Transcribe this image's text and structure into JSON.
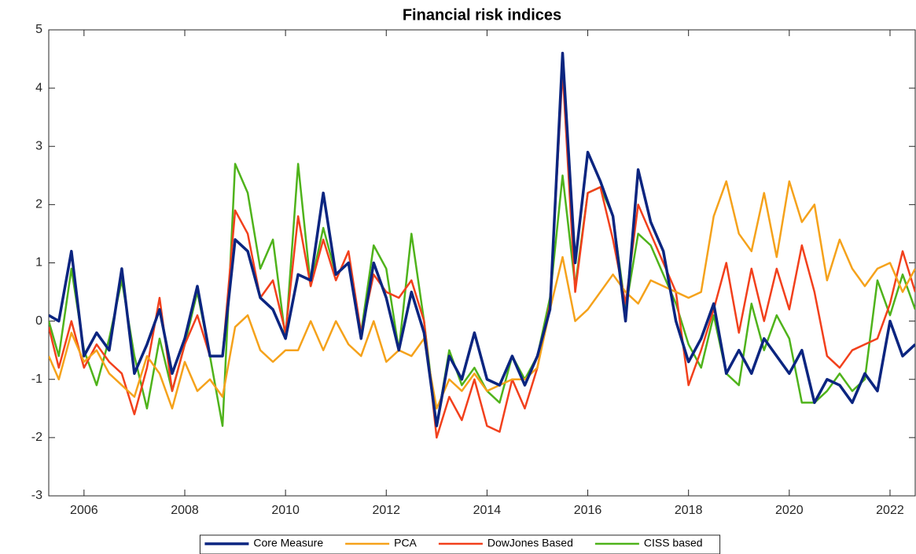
{
  "chart_data": {
    "type": "line",
    "title": "Financial risk indices",
    "x": [
      2005.3,
      2005.5,
      2005.75,
      2006,
      2006.25,
      2006.5,
      2006.75,
      2007,
      2007.25,
      2007.5,
      2007.75,
      2008,
      2008.25,
      2008.5,
      2008.75,
      2009,
      2009.25,
      2009.5,
      2009.75,
      2010,
      2010.25,
      2010.5,
      2010.75,
      2011,
      2011.25,
      2011.5,
      2011.75,
      2012,
      2012.25,
      2012.5,
      2012.75,
      2013,
      2013.25,
      2013.5,
      2013.75,
      2014,
      2014.25,
      2014.5,
      2014.75,
      2015,
      2015.25,
      2015.5,
      2015.75,
      2016,
      2016.25,
      2016.5,
      2016.75,
      2017,
      2017.25,
      2017.5,
      2017.75,
      2018,
      2018.25,
      2018.5,
      2018.75,
      2019,
      2019.25,
      2019.5,
      2019.75,
      2020,
      2020.25,
      2020.5,
      2020.75,
      2021,
      2021.25,
      2021.5,
      2021.75,
      2022,
      2022.25,
      2022.5
    ],
    "series": [
      {
        "name": "Core Measure",
        "color": "#0b2580",
        "values": [
          0.1,
          0.0,
          1.2,
          -0.6,
          -0.2,
          -0.5,
          0.9,
          -0.9,
          -0.4,
          0.2,
          -0.9,
          -0.3,
          0.6,
          -0.6,
          -0.6,
          1.4,
          1.2,
          0.4,
          0.2,
          -0.3,
          0.8,
          0.7,
          2.2,
          0.8,
          1.0,
          -0.3,
          1.0,
          0.4,
          -0.5,
          0.5,
          -0.2,
          -1.8,
          -0.6,
          -1.0,
          -0.2,
          -1.0,
          -1.1,
          -0.6,
          -1.1,
          -0.6,
          0.2,
          4.6,
          1.0,
          2.9,
          2.4,
          1.8,
          0.0,
          2.6,
          1.7,
          1.2,
          0.0,
          -0.7,
          -0.3,
          0.3,
          -0.9,
          -0.5,
          -0.9,
          -0.3,
          -0.6,
          -0.9,
          -0.5,
          -1.4,
          -1.0,
          -1.1,
          -1.4,
          -0.9,
          -1.2,
          0.0,
          -0.6,
          -0.4
        ]
      },
      {
        "name": "PCA",
        "color": "#f5a21b",
        "values": [
          -0.6,
          -1.0,
          -0.2,
          -0.7,
          -0.5,
          -0.9,
          -1.1,
          -1.3,
          -0.6,
          -0.9,
          -1.5,
          -0.7,
          -1.2,
          -1.0,
          -1.3,
          -0.1,
          0.1,
          -0.5,
          -0.7,
          -0.5,
          -0.5,
          0.0,
          -0.5,
          0.0,
          -0.4,
          -0.6,
          0.0,
          -0.7,
          -0.5,
          -0.6,
          -0.3,
          -1.5,
          -1.0,
          -1.2,
          -0.9,
          -1.2,
          -1.1,
          -1.0,
          -1.0,
          -0.8,
          0.2,
          1.1,
          0.0,
          0.2,
          0.5,
          0.8,
          0.5,
          0.3,
          0.7,
          0.6,
          0.5,
          0.4,
          0.5,
          1.8,
          2.4,
          1.5,
          1.2,
          2.2,
          1.1,
          2.4,
          1.7,
          2.0,
          0.7,
          1.4,
          0.9,
          0.6,
          0.9,
          1.0,
          0.5,
          0.9
        ]
      },
      {
        "name": "DowJones Based",
        "color": "#f2401c",
        "values": [
          -0.1,
          -0.8,
          0.0,
          -0.8,
          -0.4,
          -0.7,
          -0.9,
          -1.6,
          -0.8,
          0.4,
          -1.2,
          -0.4,
          0.1,
          -0.6,
          -0.6,
          1.9,
          1.5,
          0.4,
          0.7,
          -0.2,
          1.8,
          0.6,
          1.4,
          0.7,
          1.2,
          -0.2,
          0.8,
          0.5,
          0.4,
          0.7,
          0.0,
          -2.0,
          -1.3,
          -1.7,
          -1.0,
          -1.8,
          -1.9,
          -1.0,
          -1.5,
          -0.8,
          0.3,
          4.3,
          0.5,
          2.2,
          2.3,
          1.4,
          0.3,
          2.0,
          1.5,
          1.0,
          0.5,
          -1.1,
          -0.5,
          0.2,
          1.0,
          -0.2,
          0.9,
          0.0,
          0.9,
          0.2,
          1.3,
          0.5,
          -0.6,
          -0.8,
          -0.5,
          -0.4,
          -0.3,
          0.3,
          1.2,
          0.5
        ]
      },
      {
        "name": "CISS based",
        "color": "#4fb31b",
        "values": [
          0.0,
          -0.6,
          0.9,
          -0.5,
          -1.1,
          -0.3,
          0.7,
          -0.6,
          -1.5,
          -0.3,
          -1.2,
          -0.4,
          0.5,
          -0.6,
          -1.8,
          2.7,
          2.2,
          0.9,
          1.4,
          -0.3,
          2.7,
          0.6,
          1.6,
          0.8,
          1.0,
          -0.2,
          1.3,
          0.9,
          -0.5,
          1.5,
          0.0,
          -1.8,
          -0.5,
          -1.1,
          -0.8,
          -1.2,
          -1.4,
          -0.6,
          -1.0,
          -0.6,
          0.4,
          2.5,
          0.6,
          2.2,
          2.3,
          1.8,
          0.2,
          1.5,
          1.3,
          0.8,
          0.3,
          -0.4,
          -0.8,
          0.1,
          -0.9,
          -1.1,
          0.3,
          -0.5,
          0.1,
          -0.3,
          -1.4,
          -1.4,
          -1.2,
          -0.9,
          -1.2,
          -1.0,
          0.7,
          0.1,
          0.8,
          0.2
        ]
      }
    ],
    "xlim": [
      2005.3,
      2022.5
    ],
    "xticks": [
      2006,
      2008,
      2010,
      2012,
      2014,
      2016,
      2018,
      2020,
      2022
    ],
    "ylim": [
      -3,
      5
    ],
    "yticks": [
      -3,
      -2,
      -1,
      0,
      1,
      2,
      3,
      4,
      5
    ],
    "grid": false,
    "legend": "bottom"
  }
}
